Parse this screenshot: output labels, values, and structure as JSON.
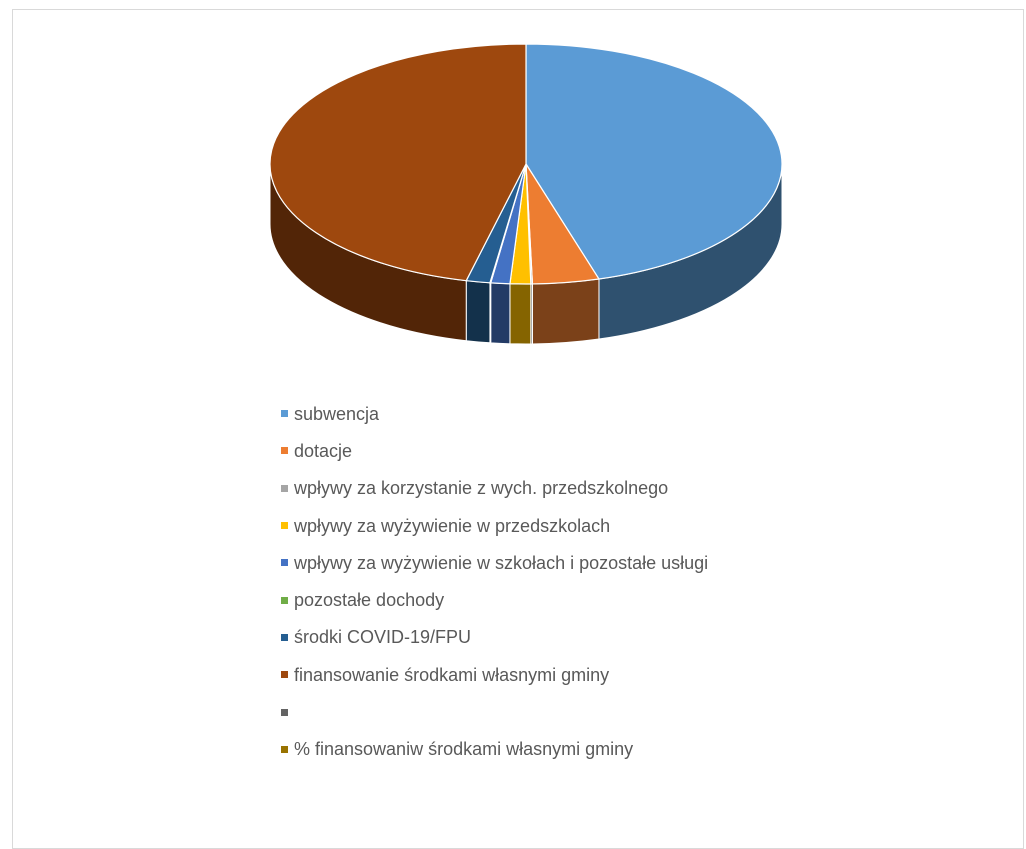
{
  "chart_data": {
    "type": "pie",
    "title": "",
    "style": "3d",
    "legend_position": "bottom",
    "series": [
      {
        "name": "",
        "slices": [
          {
            "label": "subwencja",
            "value": 45.4,
            "color": "#5b9bd5"
          },
          {
            "label": "dotacje",
            "value": 4.2,
            "color": "#ed7d31"
          },
          {
            "label": "wpływy za korzystanie z wych. przedszkolnego",
            "value": 0.1,
            "color": "#a5a5a5"
          },
          {
            "label": "wpływy za wyżywienie w przedszkolach",
            "value": 1.3,
            "color": "#ffc000"
          },
          {
            "label": "wpływy za  wyżywienie w szkołach i pozostałe usługi",
            "value": 1.2,
            "color": "#4472c4"
          },
          {
            "label": "pozostałe dochody",
            "value": 0.05,
            "color": "#70ad47"
          },
          {
            "label": "środki COVID-19/FPU",
            "value": 1.5,
            "color": "#255e91"
          },
          {
            "label": "finansowanie środkami własnymi gminy",
            "value": 46.25,
            "color": "#9e480e"
          },
          {
            "label": "",
            "value": 0,
            "color": "#636363"
          },
          {
            "label": "% finansowaniw środkami własnymi gminy",
            "value": 0,
            "color": "#997300"
          }
        ]
      }
    ]
  }
}
